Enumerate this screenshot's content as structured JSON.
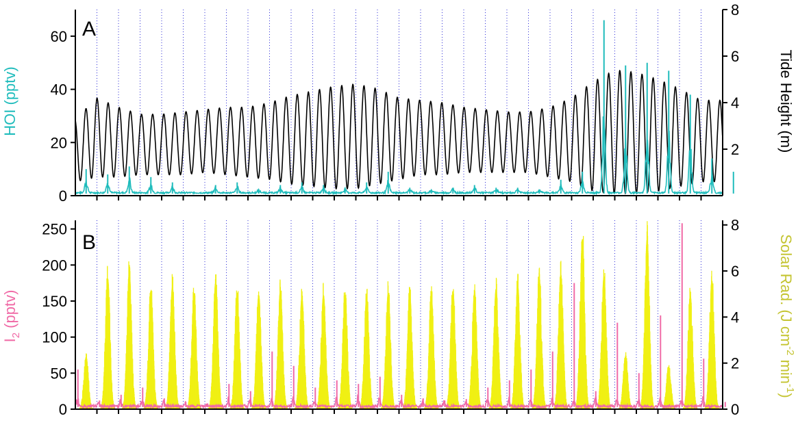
{
  "colors": {
    "hoi": "#1fbcbc",
    "tide": "#000000",
    "i2": "#f06aa6",
    "solar": "#f0f015",
    "solar_label": "#c4c431",
    "day_grid": "#2b2bd6",
    "axis": "#000000"
  },
  "chart_data": [
    {
      "panel": "A",
      "type": "line",
      "x": {
        "start_day": 0,
        "days": 30,
        "ticks_per_day": 1,
        "gridlines": "dotted, one per day"
      },
      "left_axis": {
        "label": "HOI (pptv)",
        "ylim": [
          0,
          70
        ],
        "ticks": [
          "0",
          "20",
          "40",
          "60"
        ]
      },
      "right_axis": {
        "label": "Tide Height (m)",
        "ylim": [
          0,
          8
        ],
        "ticks": [
          "2",
          "4",
          "6",
          "8"
        ]
      },
      "series": [
        {
          "name": "Tide Height",
          "axis": "right",
          "style": "semidiurnal oscillation",
          "cycles_per_day": 1.94,
          "daily_max_m": [
            3.3,
            4.2,
            3.8,
            3.5,
            3.5,
            3.6,
            3.7,
            3.8,
            3.8,
            4.0,
            4.3,
            4.5,
            4.7,
            4.8,
            4.6,
            4.2,
            4.1,
            4.0,
            3.8,
            3.7,
            3.6,
            3.6,
            3.8,
            4.2,
            4.9,
            5.4,
            5.3,
            5.0,
            4.6,
            4.1,
            4.1
          ],
          "daily_min_m": [
            0.6,
            0.8,
            0.8,
            0.9,
            0.9,
            0.9,
            1.0,
            0.9,
            0.8,
            0.7,
            0.5,
            0.4,
            0.3,
            0.3,
            0.5,
            0.7,
            0.9,
            0.9,
            1.0,
            1.0,
            1.0,
            1.0,
            0.8,
            0.6,
            0.2,
            0.1,
            0.1,
            0.2,
            0.4,
            0.6,
            0.6
          ]
        },
        {
          "name": "HOI",
          "axis": "left",
          "style": "daily peaks",
          "daily_peak_pptv": [
            10,
            8,
            11,
            7,
            5,
            0,
            4,
            5,
            2,
            4,
            5,
            4,
            3,
            5,
            9,
            3,
            2,
            3,
            4,
            3,
            3,
            2,
            6,
            9,
            66,
            49,
            50,
            47,
            38,
            14,
            9
          ]
        }
      ]
    },
    {
      "panel": "B",
      "type": "area",
      "x": {
        "start_day": 0,
        "days": 30,
        "ticks_per_day": 1,
        "gridlines": "dotted, one per day"
      },
      "left_axis": {
        "label_main": "I",
        "label_sub": "2",
        "label_tail": " (pptv)",
        "ylim": [
          0,
          262
        ],
        "ticks": [
          "0",
          "50",
          "100",
          "150",
          "200",
          "250"
        ]
      },
      "right_axis": {
        "label_prefix": "Solar Rad. (J cm",
        "label_sup1": "-2",
        "label_mid": " min",
        "label_sup2": "-1",
        "label_suffix": ")",
        "ylim": [
          0,
          8.2
        ],
        "ticks": [
          "0",
          "2",
          "4",
          "6",
          "8"
        ]
      },
      "series": [
        {
          "name": "Solar Rad.",
          "axis": "right",
          "style": "filled daily bell",
          "daily_peak": [
            2.5,
            6.3,
            6.6,
            5.7,
            5.9,
            5.6,
            6.1,
            5.6,
            5.5,
            5.7,
            5.4,
            5.5,
            5.5,
            5.4,
            5.6,
            5.5,
            5.4,
            5.7,
            5.6,
            5.8,
            6.0,
            6.3,
            6.5,
            8.2,
            6.4,
            2.5,
            8.2,
            2.0,
            5.5,
            6.2,
            6.6
          ]
        },
        {
          "name": "I2",
          "axis": "left",
          "style": "spiky daily peaks",
          "daily_peak_pptv": [
            55,
            12,
            20,
            30,
            15,
            10,
            8,
            35,
            25,
            80,
            60,
            30,
            40,
            35,
            45,
            20,
            15,
            12,
            14,
            30,
            40,
            55,
            80,
            175,
            25,
            120,
            50,
            130,
            258,
            70,
            10
          ]
        }
      ]
    }
  ]
}
